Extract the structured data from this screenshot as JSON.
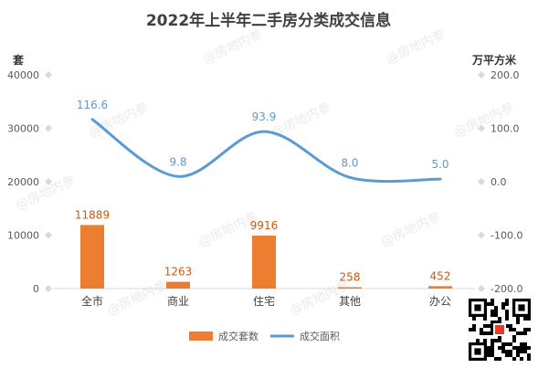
{
  "chart_data": {
    "type": "bar",
    "title": "2022年上半年二手房分类成交信息",
    "categories": [
      "全市",
      "商业",
      "住宅",
      "其他",
      "办公"
    ],
    "y_left_label": "套",
    "y_right_label": "万平方米",
    "y_left_ticks": [
      "40000",
      "30000",
      "20000",
      "10000",
      "0"
    ],
    "y_right_ticks": [
      "200.0",
      "100.0",
      "0.0",
      "-100.0",
      "-200.0"
    ],
    "ylim_left": [
      0,
      40000
    ],
    "ylim_right": [
      -200,
      200
    ],
    "series": [
      {
        "name": "成交套数",
        "type": "bar",
        "axis": "left",
        "color": "#ed7d31",
        "values": [
          11889,
          1263,
          9916,
          258,
          452
        ]
      },
      {
        "name": "成交面积",
        "type": "line",
        "axis": "right",
        "color": "#5b9bd5",
        "smooth": true,
        "values": [
          116.6,
          9.8,
          93.9,
          8.0,
          5.0
        ]
      }
    ],
    "bar_labels": [
      "11889",
      "1263",
      "9916",
      "258",
      "452"
    ],
    "line_labels": [
      "116.6",
      "9.8",
      "93.9",
      "8.0",
      "5.0"
    ],
    "grid": false,
    "legend_position": "bottom"
  },
  "watermark": "@房地内参",
  "qr_icon": "qr-code-icon"
}
